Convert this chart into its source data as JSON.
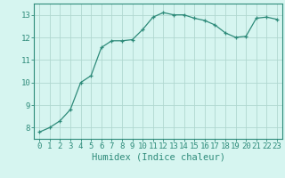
{
  "x": [
    0,
    1,
    2,
    3,
    4,
    5,
    6,
    7,
    8,
    9,
    10,
    11,
    12,
    13,
    14,
    15,
    16,
    17,
    18,
    19,
    20,
    21,
    22,
    23
  ],
  "y": [
    7.8,
    8.0,
    8.3,
    8.8,
    10.0,
    10.3,
    11.55,
    11.85,
    11.85,
    11.9,
    12.35,
    12.9,
    13.1,
    13.0,
    13.0,
    12.85,
    12.75,
    12.55,
    12.2,
    12.0,
    12.05,
    12.85,
    12.9,
    12.8
  ],
  "line_color": "#2e8b7a",
  "marker": "+",
  "bg_color": "#d6f5f0",
  "grid_color": "#b0d8d0",
  "xlabel": "Humidex (Indice chaleur)",
  "xlim": [
    -0.5,
    23.5
  ],
  "ylim": [
    7.5,
    13.5
  ],
  "yticks": [
    8,
    9,
    10,
    11,
    12,
    13
  ],
  "xticks": [
    0,
    1,
    2,
    3,
    4,
    5,
    6,
    7,
    8,
    9,
    10,
    11,
    12,
    13,
    14,
    15,
    16,
    17,
    18,
    19,
    20,
    21,
    22,
    23
  ],
  "axis_color": "#2e8b7a",
  "tick_color": "#2e8b7a",
  "xlabel_color": "#2e8b7a",
  "label_fontsize": 7.5,
  "tick_fontsize": 6.5
}
